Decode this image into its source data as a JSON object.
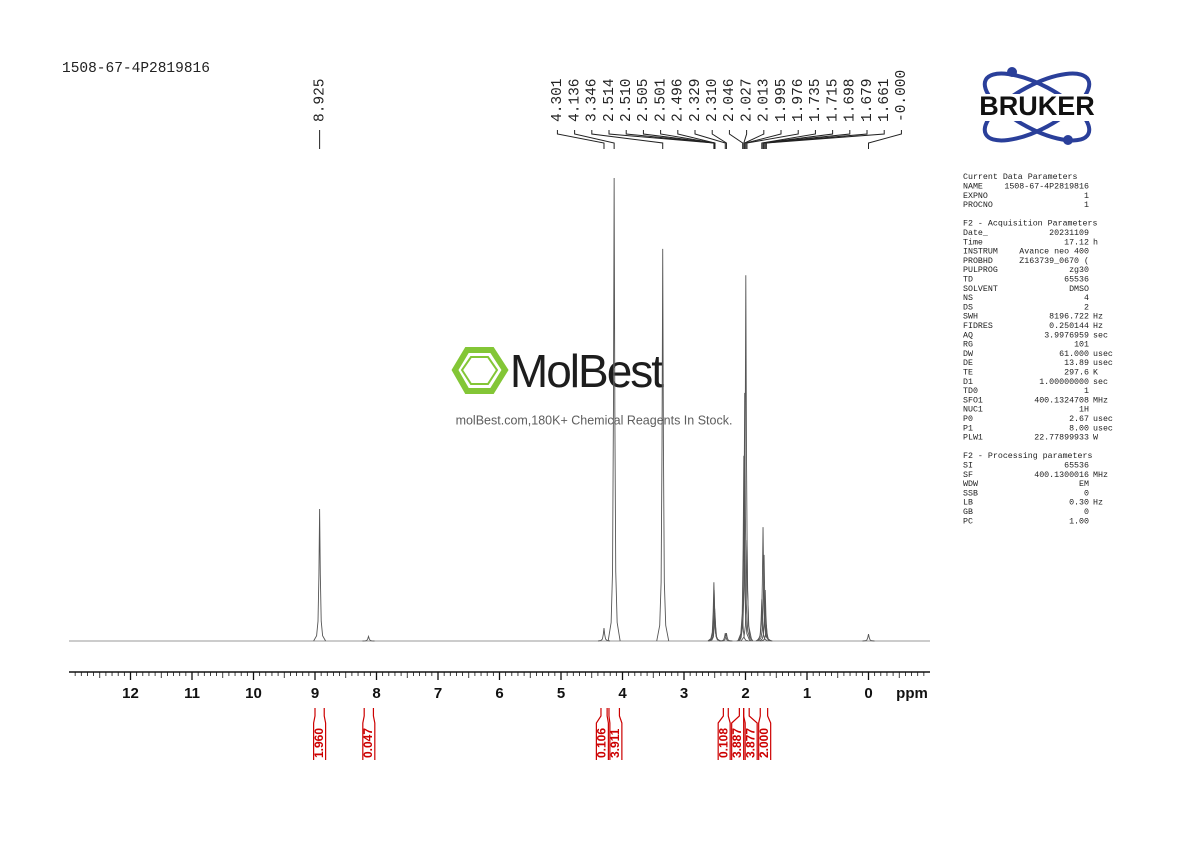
{
  "sample_name": "1508-67-4P2819816",
  "logo": "BRUKER",
  "watermark": {
    "brand": "MolBest",
    "tagline": "molBest.com,180K+ Chemical Reagents In Stock."
  },
  "chart_data": {
    "type": "line",
    "x_label": "ppm",
    "xlim": [
      13,
      -1
    ],
    "xticks": [
      12,
      11,
      10,
      9,
      8,
      7,
      6,
      5,
      4,
      3,
      2,
      1,
      0
    ],
    "ylim": [
      0,
      100
    ],
    "series": [
      {
        "color": "#555555",
        "x": [
          8.925,
          8.13,
          4.301,
          4.136,
          3.346,
          2.514,
          2.51,
          2.505,
          2.501,
          2.496,
          2.329,
          2.31,
          2.046,
          2.027,
          2.013,
          1.995,
          1.976,
          1.735,
          1.715,
          1.698,
          1.679,
          1.661,
          0
        ],
        "x_labels": [
          "8.925",
          null,
          "4.301",
          "4.136",
          "3.346",
          "2.514",
          "2.510",
          "2.505",
          "2.501",
          "2.496",
          "2.329",
          "2.310",
          "2.046",
          "2.027",
          "2.013",
          "1.995",
          "1.976",
          "1.735",
          "1.715",
          "1.698",
          "1.679",
          "1.661",
          "-0.000"
        ],
        "values": [
          28.5,
          1,
          2.8,
          100,
          84.7,
          12.7,
          11,
          6.5,
          7,
          6,
          1.7,
          1.7,
          4.5,
          40,
          53.6,
          79,
          21.8,
          9,
          24.6,
          18.6,
          11,
          3.5,
          1.5
        ]
      }
    ],
    "integrals": {
      "color": "#cc0000",
      "ranges": [
        [
          9.0,
          8.85
        ],
        [
          8.2,
          8.05
        ],
        [
          4.35,
          4.25
        ],
        [
          4.22,
          4.05
        ],
        [
          2.36,
          2.28
        ],
        [
          2.1,
          2.03
        ],
        [
          2.03,
          1.94
        ],
        [
          1.76,
          1.64
        ]
      ],
      "values": [
        1.96,
        0.047,
        0.106,
        3.911,
        0.108,
        3.887,
        3.877,
        2
      ],
      "value_labels": [
        "1.960",
        "0.047",
        "0.106",
        "3.911",
        "0.108",
        "3.887",
        "3.877",
        "2.000"
      ]
    }
  },
  "parameters": [
    {
      "heading": "Current Data Parameters",
      "rows": [
        [
          "NAME",
          "1508-67-4P2819816"
        ],
        [
          "EXPNO",
          "1"
        ],
        [
          "PROCNO",
          "1"
        ]
      ]
    },
    {
      "heading": "F2 - Acquisition Parameters",
      "rows": [
        [
          "Date_",
          "20231109"
        ],
        [
          "Time",
          "17.12",
          "h"
        ],
        [
          "INSTRUM",
          "Avance neo 400"
        ],
        [
          "PROBHD",
          "Z163739_0670 ("
        ],
        [
          "PULPROG",
          "zg30"
        ],
        [
          "TD",
          "65536"
        ],
        [
          "SOLVENT",
          "DMSO"
        ],
        [
          "NS",
          "4"
        ],
        [
          "DS",
          "2"
        ],
        [
          "SWH",
          "8196.722",
          "Hz"
        ],
        [
          "FIDRES",
          "0.250144",
          "Hz"
        ],
        [
          "AQ",
          "3.9976959",
          "sec"
        ],
        [
          "RG",
          "101"
        ],
        [
          "DW",
          "61.000",
          "usec"
        ],
        [
          "DE",
          "13.89",
          "usec"
        ],
        [
          "TE",
          "297.6",
          "K"
        ],
        [
          "D1",
          "1.00000000",
          "sec"
        ],
        [
          "TD0",
          "1"
        ],
        [
          "SFO1",
          "400.1324708",
          "MHz"
        ],
        [
          "NUC1",
          "1H"
        ],
        [
          "P0",
          "2.67",
          "usec"
        ],
        [
          "P1",
          "8.00",
          "usec"
        ],
        [
          "PLW1",
          "22.77899933",
          "W"
        ]
      ]
    },
    {
      "heading": "F2 - Processing parameters",
      "rows": [
        [
          "SI",
          "65536"
        ],
        [
          "SF",
          "400.1300016",
          "MHz"
        ],
        [
          "WDW",
          "EM"
        ],
        [
          "SSB",
          "0"
        ],
        [
          "LB",
          "0.30",
          "Hz"
        ],
        [
          "GB",
          "0"
        ],
        [
          "PC",
          "1.00"
        ]
      ]
    }
  ]
}
